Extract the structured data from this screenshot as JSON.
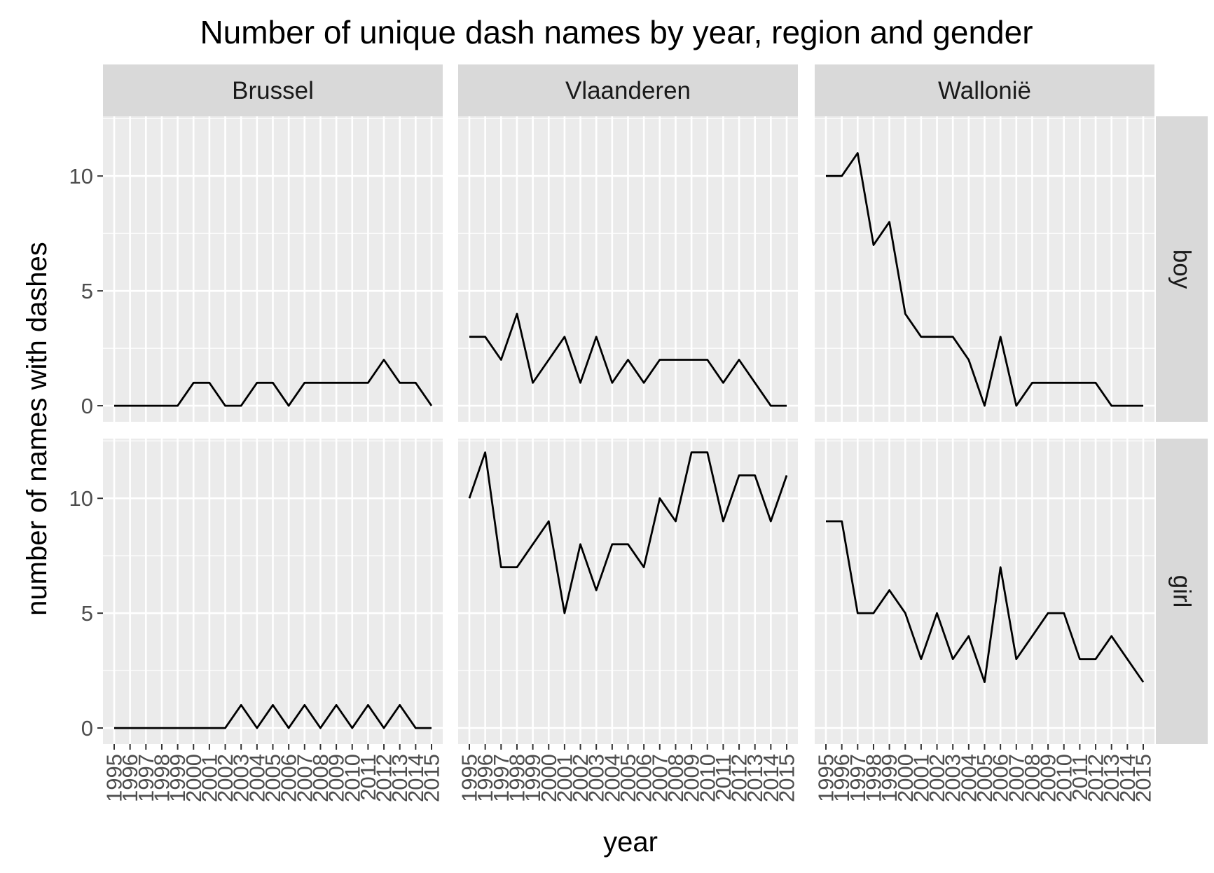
{
  "chart_data": {
    "type": "line",
    "title": "Number of unique dash names by year, region and gender",
    "xlabel": "year",
    "ylabel": "number of names with dashes",
    "x": [
      "1995",
      "1996",
      "1997",
      "1998",
      "1999",
      "2000",
      "2001",
      "2002",
      "2003",
      "2004",
      "2005",
      "2006",
      "2007",
      "2008",
      "2009",
      "2010",
      "2011",
      "2012",
      "2013",
      "2014",
      "2015"
    ],
    "ylim": [
      -0.7,
      12.6
    ],
    "yticks": [
      0,
      5,
      10
    ],
    "grid": true,
    "columns": [
      "Brussel",
      "Vlaanderen",
      "Wallonië"
    ],
    "rows": [
      "boy",
      "girl"
    ],
    "line_color": "#000000",
    "panel_bg": "#ebebeb",
    "strip_bg": "#d9d9d9",
    "series": [
      {
        "column": "Brussel",
        "row": "boy",
        "values": [
          0,
          0,
          0,
          0,
          0,
          1,
          1,
          0,
          0,
          1,
          1,
          0,
          1,
          1,
          1,
          1,
          1,
          2,
          1,
          1,
          0
        ]
      },
      {
        "column": "Vlaanderen",
        "row": "boy",
        "values": [
          3,
          3,
          2,
          4,
          1,
          2,
          3,
          1,
          3,
          1,
          2,
          1,
          2,
          2,
          2,
          2,
          1,
          2,
          1,
          0,
          0
        ]
      },
      {
        "column": "Wallonië",
        "row": "boy",
        "values": [
          10,
          10,
          11,
          7,
          8,
          4,
          3,
          3,
          3,
          2,
          0,
          3,
          0,
          1,
          1,
          1,
          1,
          1,
          0,
          0,
          0
        ]
      },
      {
        "column": "Brussel",
        "row": "girl",
        "values": [
          0,
          0,
          0,
          0,
          0,
          0,
          0,
          0,
          1,
          0,
          1,
          0,
          1,
          0,
          1,
          0,
          1,
          0,
          1,
          0,
          0
        ]
      },
      {
        "column": "Vlaanderen",
        "row": "girl",
        "values": [
          10,
          12,
          7,
          7,
          8,
          9,
          5,
          8,
          6,
          8,
          8,
          7,
          10,
          9,
          12,
          12,
          9,
          11,
          11,
          9,
          11
        ]
      },
      {
        "column": "Wallonië",
        "row": "girl",
        "values": [
          9,
          9,
          5,
          5,
          6,
          5,
          3,
          5,
          3,
          4,
          2,
          7,
          3,
          4,
          5,
          5,
          3,
          3,
          4,
          3,
          2
        ]
      }
    ]
  }
}
